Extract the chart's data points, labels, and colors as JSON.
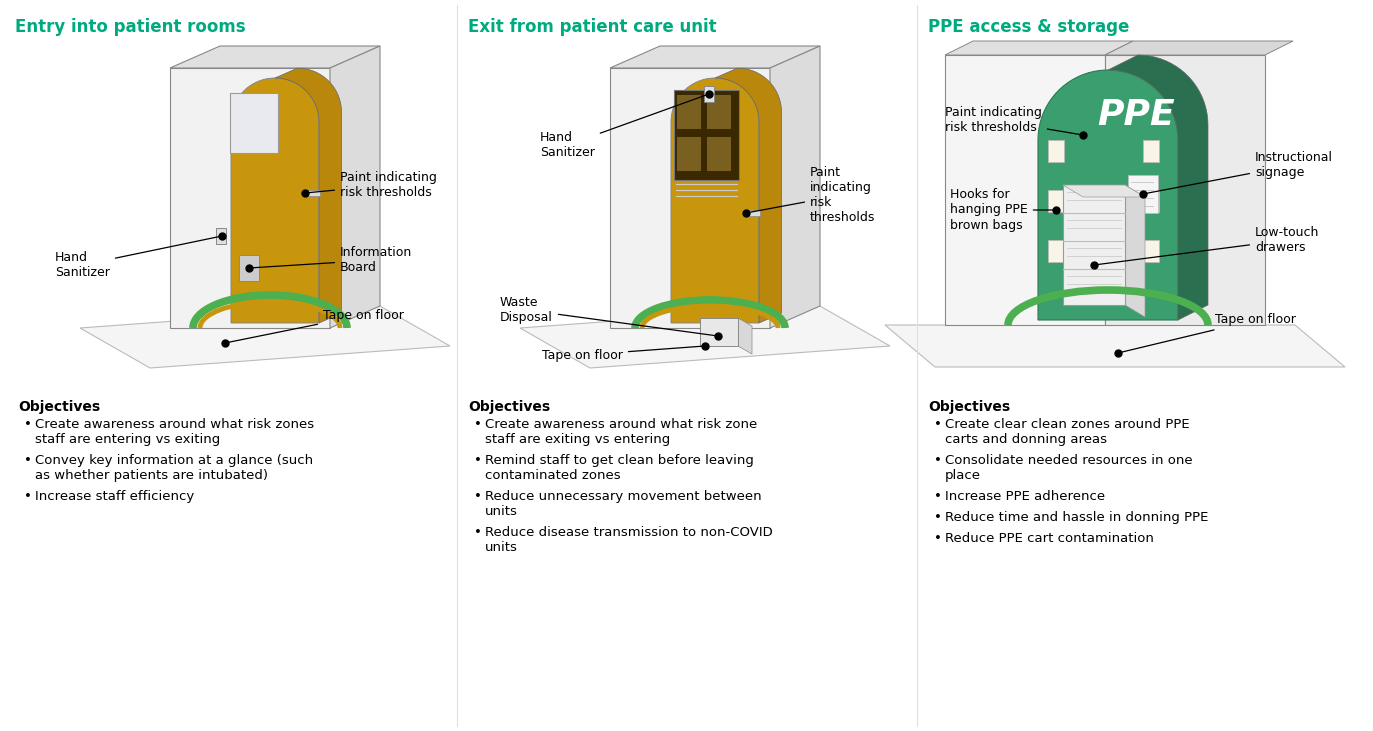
{
  "title1": "Entry into patient rooms",
  "title2": "Exit from patient care unit",
  "title3": "PPE access & storage",
  "title_color": "#00AA7F",
  "title_fontsize": 12,
  "yellow": "#C8960C",
  "green_tape": "#4CAF50",
  "yellow_tape": "#C8960C",
  "ppe_green": "#3A9E6F",
  "annotation_fontsize": 9,
  "bullet_fontsize": 9.5,
  "objectives_fontsize": 10,
  "section1_objectives": [
    "Create awareness around what risk zones staff are entering vs exiting",
    "Convey key information at a glance (such as whether patients are intubated)",
    "Increase staff efficiency"
  ],
  "section2_objectives": [
    "Create awareness around what risk zone staff are exiting vs entering",
    "Remind staff to get clean before leaving contaminated zones",
    "Reduce unnecessary movement between units",
    "Reduce disease transmission to non-COVID units"
  ],
  "section3_objectives": [
    "Create clear clean zones around PPE carts and donning areas",
    "Consolidate needed resources in one place",
    "Increase PPE adherence",
    "Reduce time and hassle in donning PPE",
    "Reduce PPE cart contamination"
  ]
}
